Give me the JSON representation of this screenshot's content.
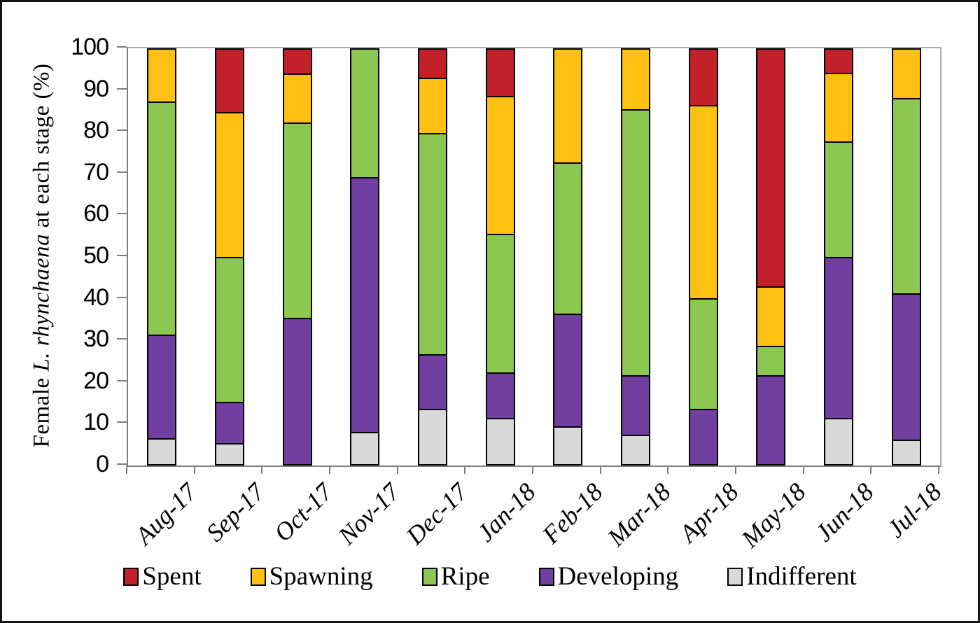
{
  "chart_data": {
    "type": "bar",
    "subtype": "stacked-percent-column",
    "title": "",
    "xlabel": "",
    "ylabel_parts": [
      "Female ",
      "L. rhynchaena",
      " at each stage (%)"
    ],
    "ylim": [
      0,
      100
    ],
    "yticks": [
      0,
      10,
      20,
      30,
      40,
      50,
      60,
      70,
      80,
      90,
      100
    ],
    "grid": false,
    "legend_position": "bottom",
    "legend_order": [
      "Spent",
      "Spawning",
      "Ripe",
      "Developing",
      "Indifferent"
    ],
    "categories": [
      "Aug-17",
      "Sep-17",
      "Oct-17",
      "Nov-17",
      "Dec-17",
      "Jan-18",
      "Feb-18",
      "Mar-18",
      "Apr-18",
      "May-18",
      "Jun-18",
      "Jul-18"
    ],
    "series": [
      {
        "name": "Indifferent",
        "color": "#d9d9d9",
        "values": [
          6.3,
          5.0,
          0,
          7.7,
          13.3,
          11.1,
          9.1,
          7.1,
          0,
          0,
          11.1,
          5.9
        ]
      },
      {
        "name": "Developing",
        "color": "#703fa0",
        "values": [
          25.0,
          10.0,
          35.3,
          61.5,
          13.3,
          11.1,
          27.3,
          14.3,
          13.3,
          21.4,
          38.9,
          35.3
        ]
      },
      {
        "name": "Ripe",
        "color": "#8cc751",
        "values": [
          56.2,
          35.0,
          47.1,
          30.8,
          53.3,
          33.3,
          36.4,
          64.3,
          26.7,
          7.2,
          27.8,
          47.1
        ]
      },
      {
        "name": "Spawning",
        "color": "#fdc013",
        "values": [
          12.5,
          35.0,
          11.8,
          0,
          13.4,
          33.4,
          27.2,
          14.3,
          46.7,
          14.3,
          16.6,
          11.7
        ]
      },
      {
        "name": "Spent",
        "color": "#c2212b",
        "values": [
          0,
          15.0,
          5.8,
          0,
          6.7,
          11.1,
          0,
          0,
          13.3,
          57.1,
          5.6,
          0
        ]
      }
    ],
    "axis_colors": {
      "axis_line": "#7f7f7f",
      "plot_border": "#ababab",
      "bar_border": "#000000"
    }
  }
}
